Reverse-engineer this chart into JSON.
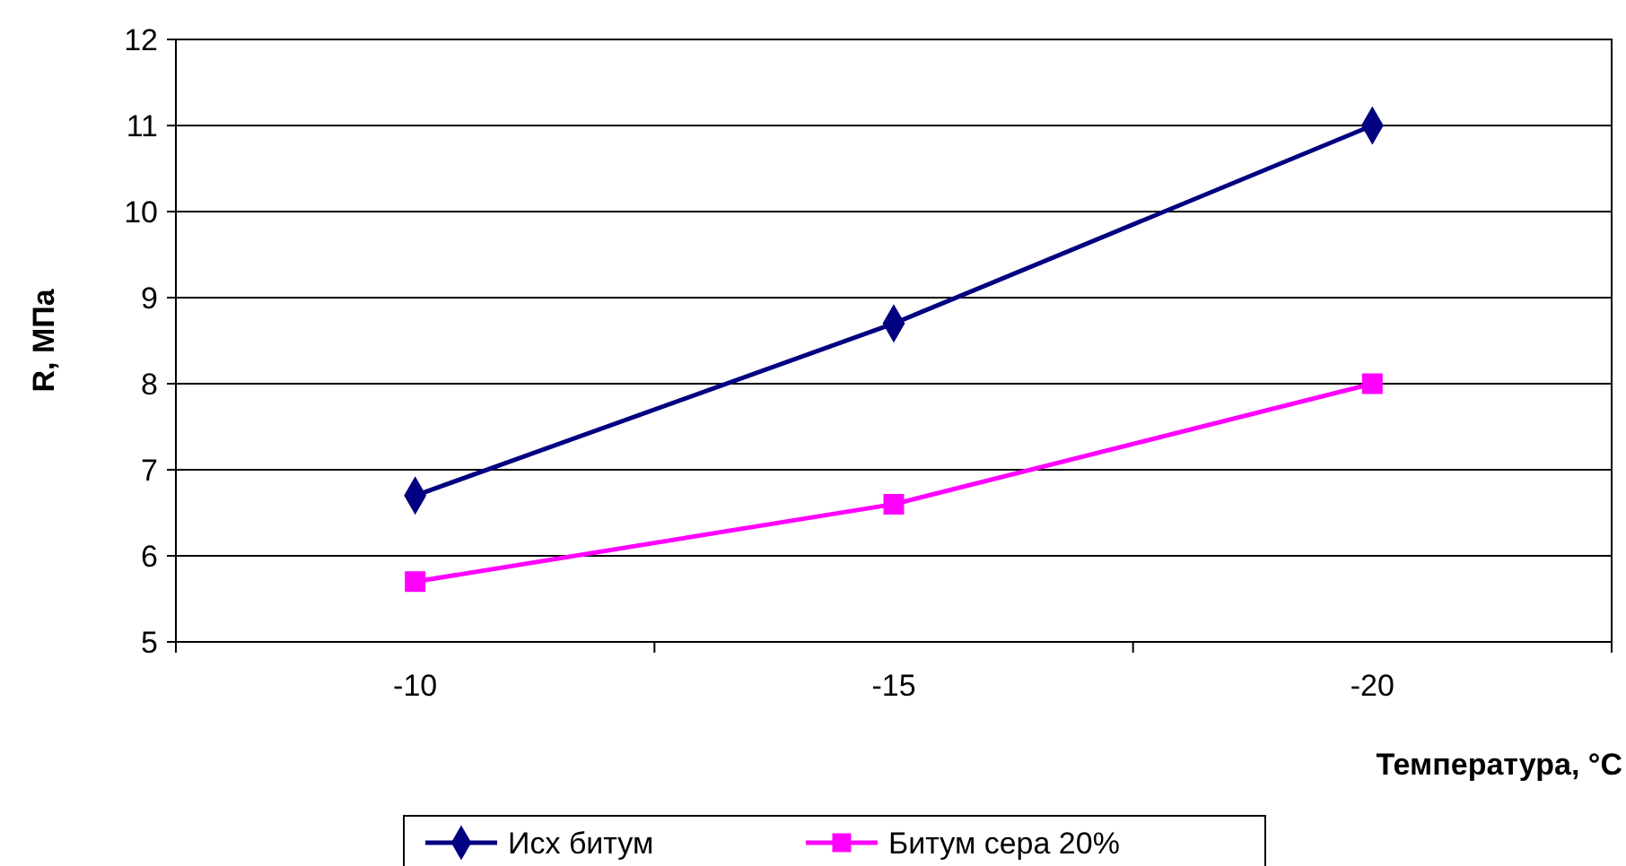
{
  "chart_data": {
    "type": "line",
    "xlabel": "Температура, °C",
    "ylabel": "R, МПа",
    "categories": [
      "-10",
      "-15",
      "-20"
    ],
    "ylim": [
      5,
      12
    ],
    "yticks": [
      5,
      6,
      7,
      8,
      9,
      10,
      11,
      12
    ],
    "grid": "y",
    "legend": "bottom",
    "line_style": "solid",
    "series": [
      {
        "name": "Исх битум",
        "color": "#000080",
        "marker": "diamond",
        "values": [
          6.7,
          8.7,
          11.0
        ]
      },
      {
        "name": "Битум сера 20%",
        "color": "#ff00ff",
        "marker": "square",
        "values": [
          5.7,
          6.6,
          8.0
        ]
      }
    ]
  }
}
